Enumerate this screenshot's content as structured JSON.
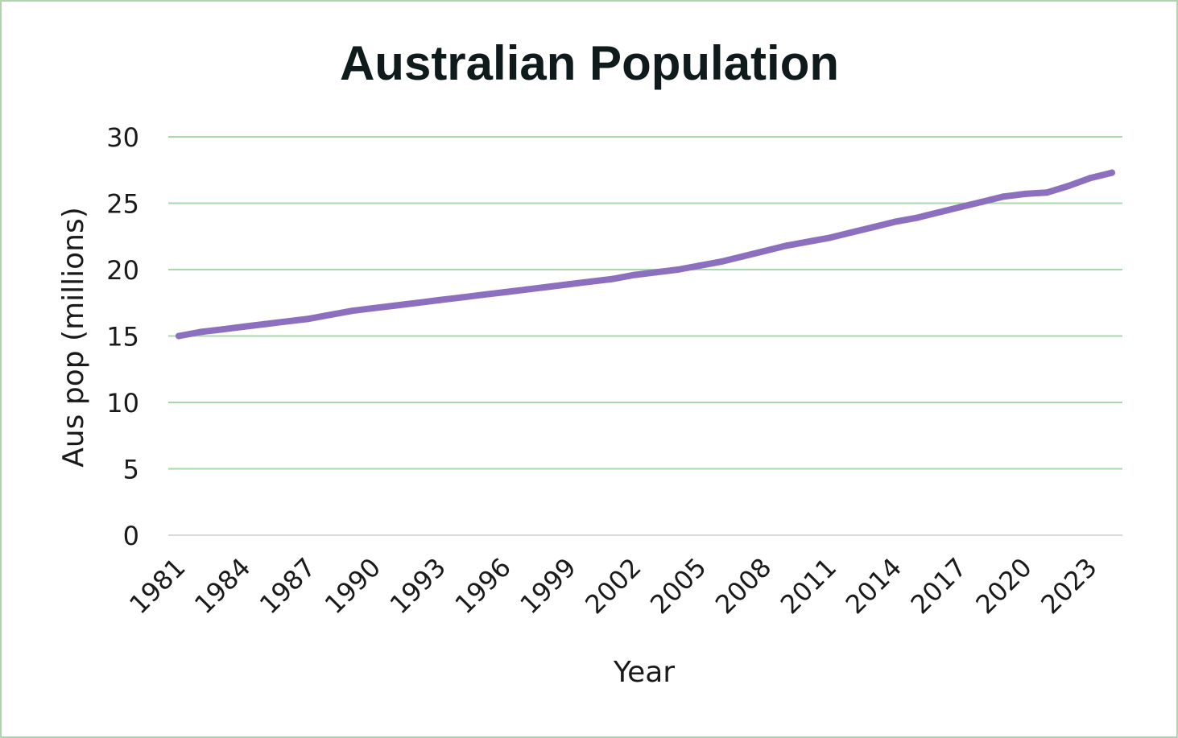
{
  "chart_data": {
    "type": "line",
    "title": "Australian Population",
    "xlabel": "Year",
    "ylabel": "Aus pop (millions)",
    "ylim": [
      0,
      30
    ],
    "yticks": [
      0,
      5,
      10,
      15,
      20,
      25,
      30
    ],
    "xtick_labels": [
      "1981",
      "1984",
      "1987",
      "1990",
      "1993",
      "1996",
      "1999",
      "2002",
      "2005",
      "2008",
      "2011",
      "2014",
      "2017",
      "2020",
      "2023"
    ],
    "grid": true,
    "legend": "none",
    "x": [
      1981,
      1982,
      1983,
      1984,
      1985,
      1986,
      1987,
      1988,
      1989,
      1990,
      1991,
      1992,
      1993,
      1994,
      1995,
      1996,
      1997,
      1998,
      1999,
      2000,
      2001,
      2002,
      2003,
      2004,
      2005,
      2006,
      2007,
      2008,
      2009,
      2010,
      2011,
      2012,
      2013,
      2014,
      2015,
      2016,
      2017,
      2018,
      2019,
      2020,
      2021,
      2022,
      2023,
      2024
    ],
    "values": [
      15.0,
      15.3,
      15.5,
      15.7,
      15.9,
      16.1,
      16.3,
      16.6,
      16.9,
      17.1,
      17.3,
      17.5,
      17.7,
      17.9,
      18.1,
      18.3,
      18.5,
      18.7,
      18.9,
      19.1,
      19.3,
      19.6,
      19.8,
      20.0,
      20.3,
      20.6,
      21.0,
      21.4,
      21.8,
      22.1,
      22.4,
      22.8,
      23.2,
      23.6,
      23.9,
      24.3,
      24.7,
      25.1,
      25.5,
      25.7,
      25.8,
      26.3,
      26.9,
      27.3
    ],
    "line_color": "#8c6fbf",
    "grid_color": "#a9d8aa"
  }
}
